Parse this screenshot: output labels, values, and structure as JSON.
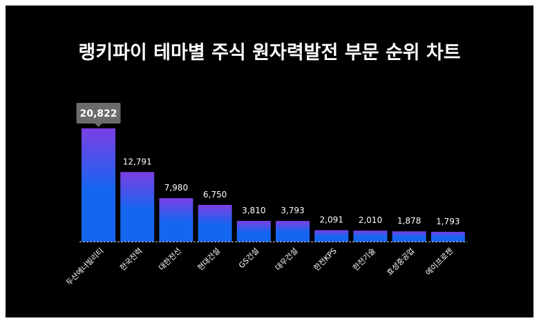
{
  "colors": {
    "background": "#000000",
    "bar_top": "#7b3fe4",
    "bar_bottom": "#1466f0",
    "callout": "#6b6b6b",
    "text": "#ffffff"
  },
  "chart_data": {
    "type": "bar",
    "title": "랭키파이 테마별 주식 원자력발전 부문 순위 차트",
    "xlabel": "",
    "ylabel": "",
    "categories": [
      "두산에너빌리티",
      "한국전력",
      "대한전선",
      "현대건설",
      "GS건설",
      "대우건설",
      "한전KPS",
      "한전기술",
      "효성중공업",
      "에이프로젠"
    ],
    "values": [
      20822,
      12791,
      7980,
      6750,
      3810,
      3793,
      2091,
      2010,
      1878,
      1793
    ],
    "value_labels": [
      "20,822",
      "12,791",
      "7,980",
      "6,750",
      "3,810",
      "3,793",
      "2,091",
      "2,010",
      "1,878",
      "1,793"
    ],
    "ylim": [
      0,
      20822
    ],
    "grid": false,
    "legend": "none",
    "highlight_index": 0
  }
}
